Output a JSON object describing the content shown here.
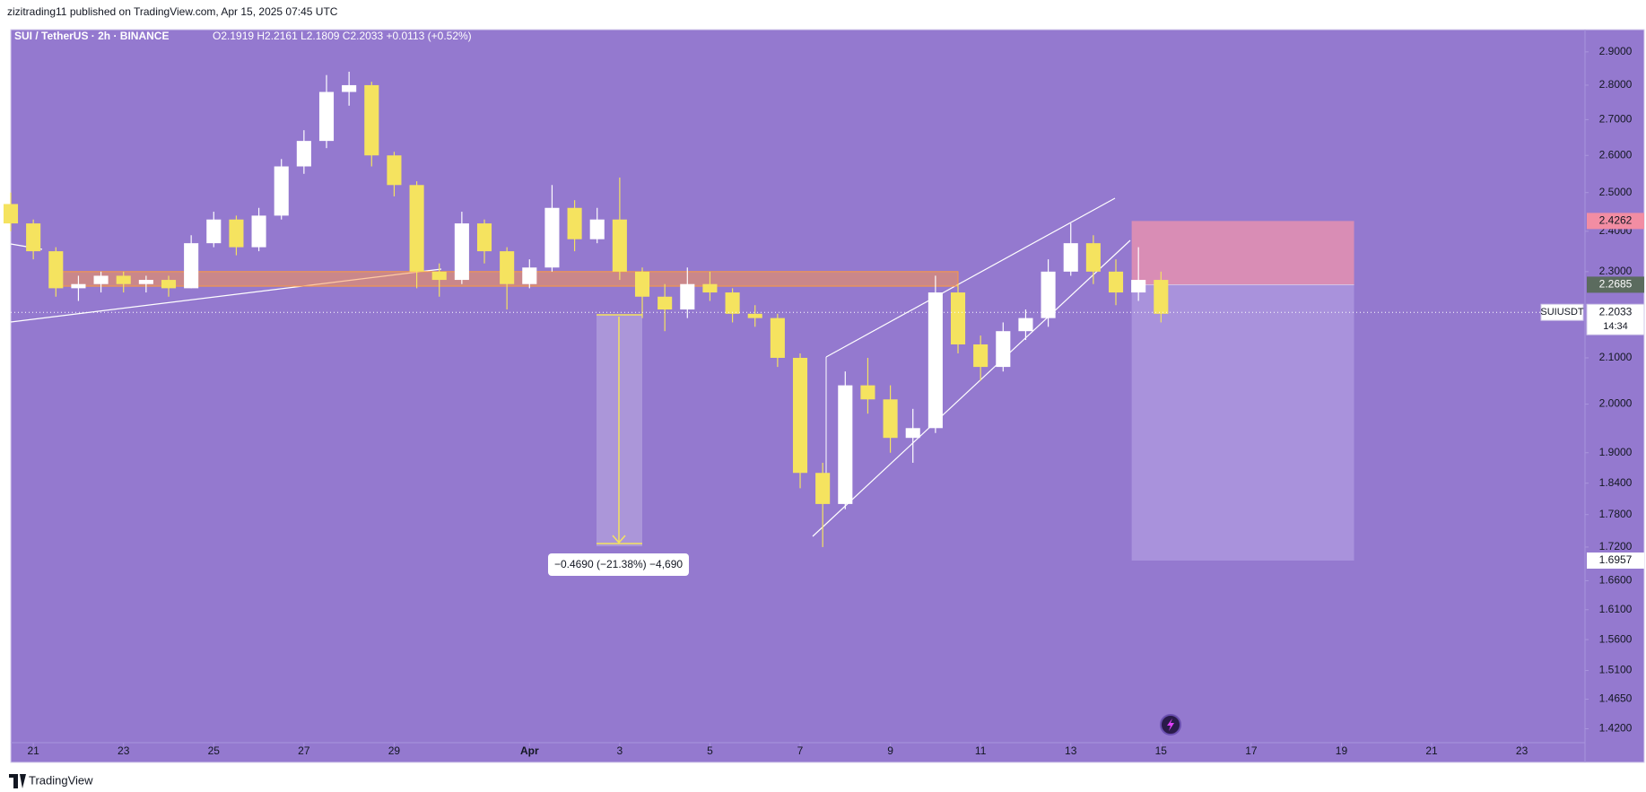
{
  "header": {
    "text": "zizitrading11 published on TradingView.com, Apr 15, 2025 07:45 UTC"
  },
  "footer": {
    "brand": "TradingView"
  },
  "chart_data": {
    "type": "candlestick",
    "symbol": "SUI / TetherUS · 2h · BINANCE",
    "ohlc": "O2.1919 H2.2161 L2.1809 C2.2033 +0.0113 (+0.52%)",
    "ticker": "SUIUSDT",
    "last_price": 2.2033,
    "countdown": "14:34",
    "log_scale": true,
    "up_color": "#ffffff",
    "down_color": "#f5e35f",
    "xlim": [
      -0.5,
      34.4
    ],
    "ylim": [
      1.377,
      2.969
    ],
    "xticks": [
      {
        "value": 0,
        "label": "21"
      },
      {
        "value": 2,
        "label": "23"
      },
      {
        "value": 4,
        "label": "25"
      },
      {
        "value": 6,
        "label": "27"
      },
      {
        "value": 8,
        "label": "29"
      },
      {
        "value": 11,
        "label": "Apr"
      },
      {
        "value": 13,
        "label": "3"
      },
      {
        "value": 15,
        "label": "5"
      },
      {
        "value": 17,
        "label": "7"
      },
      {
        "value": 19,
        "label": "9"
      },
      {
        "value": 21,
        "label": "11"
      },
      {
        "value": 23,
        "label": "13"
      },
      {
        "value": 25,
        "label": "15"
      },
      {
        "value": 27,
        "label": "17"
      },
      {
        "value": 29,
        "label": "19"
      },
      {
        "value": 31,
        "label": "21"
      },
      {
        "value": 33,
        "label": "23"
      }
    ],
    "yticks": [
      {
        "value": 2.9,
        "label": "2.9000"
      },
      {
        "value": 2.8,
        "label": "2.8000"
      },
      {
        "value": 2.7,
        "label": "2.7000"
      },
      {
        "value": 2.6,
        "label": "2.6000"
      },
      {
        "value": 2.5,
        "label": "2.5000"
      },
      {
        "value": 2.4,
        "label": "2.4000"
      },
      {
        "value": 2.3,
        "label": "2.3000"
      },
      {
        "value": 2.1,
        "label": "2.1000"
      },
      {
        "value": 2.0,
        "label": "2.0000"
      },
      {
        "value": 1.9,
        "label": "1.9000"
      },
      {
        "value": 1.84,
        "label": "1.8400"
      },
      {
        "value": 1.78,
        "label": "1.7800"
      },
      {
        "value": 1.72,
        "label": "1.7200"
      },
      {
        "value": 1.66,
        "label": "1.6600"
      },
      {
        "value": 1.61,
        "label": "1.6100"
      },
      {
        "value": 1.56,
        "label": "1.5600"
      },
      {
        "value": 1.51,
        "label": "1.5100"
      },
      {
        "value": 1.465,
        "label": "1.4650"
      },
      {
        "value": 1.42,
        "label": "1.4200"
      }
    ],
    "candles": {
      "x": [
        -0.5,
        0,
        0.5,
        1,
        1.5,
        2,
        2.5,
        3,
        3.5,
        4,
        4.5,
        5,
        5.5,
        6,
        6.5,
        7,
        7.5,
        8,
        8.5,
        9,
        9.5,
        10,
        10.5,
        11,
        11.5,
        12,
        12.5,
        13,
        13.5,
        14,
        14.5,
        15,
        15.5,
        16,
        16.5,
        17,
        17.5,
        18,
        18.5,
        19,
        19.5,
        20,
        20.5,
        21,
        21.5,
        22,
        22.5,
        23,
        23.5,
        24,
        24.5,
        25
      ],
      "open": [
        2.47,
        2.42,
        2.35,
        2.26,
        2.27,
        2.29,
        2.27,
        2.28,
        2.26,
        2.37,
        2.43,
        2.36,
        2.44,
        2.57,
        2.64,
        2.78,
        2.8,
        2.6,
        2.52,
        2.3,
        2.28,
        2.42,
        2.35,
        2.27,
        2.31,
        2.46,
        2.38,
        2.43,
        2.3,
        2.24,
        2.21,
        2.27,
        2.25,
        2.2,
        2.19,
        2.1,
        1.86,
        1.8,
        2.04,
        2.01,
        1.93,
        1.95,
        2.25,
        2.13,
        2.08,
        2.16,
        2.19,
        2.3,
        2.37,
        2.3,
        2.25,
        2.28
      ],
      "high": [
        2.5,
        2.43,
        2.36,
        2.29,
        2.3,
        2.3,
        2.29,
        2.29,
        2.39,
        2.45,
        2.44,
        2.46,
        2.59,
        2.67,
        2.83,
        2.84,
        2.81,
        2.61,
        2.53,
        2.32,
        2.45,
        2.43,
        2.36,
        2.33,
        2.52,
        2.48,
        2.46,
        2.54,
        2.31,
        2.27,
        2.31,
        2.3,
        2.26,
        2.22,
        2.2,
        2.11,
        1.88,
        2.07,
        2.1,
        2.04,
        1.99,
        2.29,
        2.27,
        2.15,
        2.18,
        2.21,
        2.33,
        2.42,
        2.39,
        2.33,
        2.36,
        2.3
      ],
      "low": [
        2.4,
        2.33,
        2.24,
        2.23,
        2.25,
        2.25,
        2.25,
        2.24,
        2.26,
        2.36,
        2.34,
        2.35,
        2.43,
        2.55,
        2.62,
        2.74,
        2.57,
        2.49,
        2.26,
        2.24,
        2.27,
        2.32,
        2.21,
        2.26,
        2.3,
        2.35,
        2.37,
        2.28,
        2.19,
        2.16,
        2.19,
        2.23,
        2.18,
        2.17,
        2.08,
        1.83,
        1.72,
        1.79,
        1.98,
        1.9,
        1.88,
        1.94,
        2.11,
        2.05,
        2.07,
        2.14,
        2.17,
        2.29,
        2.27,
        2.22,
        2.23,
        2.18
      ],
      "close": [
        2.42,
        2.35,
        2.26,
        2.27,
        2.29,
        2.27,
        2.28,
        2.26,
        2.37,
        2.43,
        2.36,
        2.44,
        2.57,
        2.64,
        2.78,
        2.8,
        2.6,
        2.52,
        2.3,
        2.28,
        2.42,
        2.35,
        2.27,
        2.31,
        2.46,
        2.38,
        2.43,
        2.3,
        2.24,
        2.21,
        2.27,
        2.25,
        2.2,
        2.19,
        2.1,
        1.86,
        1.8,
        2.04,
        2.01,
        1.93,
        1.95,
        2.25,
        2.13,
        2.08,
        2.16,
        2.19,
        2.3,
        2.37,
        2.3,
        2.25,
        2.28,
        2.2
      ]
    },
    "zone": {
      "low": 2.265,
      "high": 2.3,
      "x": [
        0.37,
        20.5
      ]
    },
    "position": {
      "stop": 2.4262,
      "entry": 2.2685,
      "target": 1.6957,
      "x": [
        24.35,
        29.28
      ]
    },
    "measure_label": "−0.4690 (−21.38%) −4,690"
  }
}
